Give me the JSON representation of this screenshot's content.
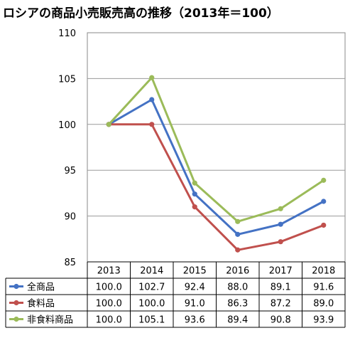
{
  "chart_data": {
    "type": "line",
    "title": "ロシアの商品小売販売高の推移（2013年＝100）",
    "categories": [
      "2013",
      "2014",
      "2015",
      "2016",
      "2017",
      "2018"
    ],
    "ylim": [
      85,
      110
    ],
    "yticks": [
      "110",
      "105",
      "100",
      "95",
      "90",
      "85"
    ],
    "grid": true,
    "legend": "data-table",
    "series": [
      {
        "name": "全商品",
        "color": "#4472c4",
        "values": [
          100.0,
          102.7,
          92.4,
          88.0,
          89.1,
          91.6
        ],
        "labels": [
          "100.0",
          "102.7",
          "92.4",
          "88.0",
          "89.1",
          "91.6"
        ]
      },
      {
        "name": "食料品",
        "color": "#c0504d",
        "values": [
          100.0,
          100.0,
          91.0,
          86.3,
          87.2,
          89.0
        ],
        "labels": [
          "100.0",
          "100.0",
          "91.0",
          "86.3",
          "87.2",
          "89.0"
        ]
      },
      {
        "name": "非食料商品",
        "color": "#9bbb59",
        "values": [
          100.0,
          105.1,
          93.6,
          89.4,
          90.8,
          93.9
        ],
        "labels": [
          "100.0",
          "105.1",
          "93.6",
          "89.4",
          "90.8",
          "93.9"
        ]
      }
    ]
  }
}
